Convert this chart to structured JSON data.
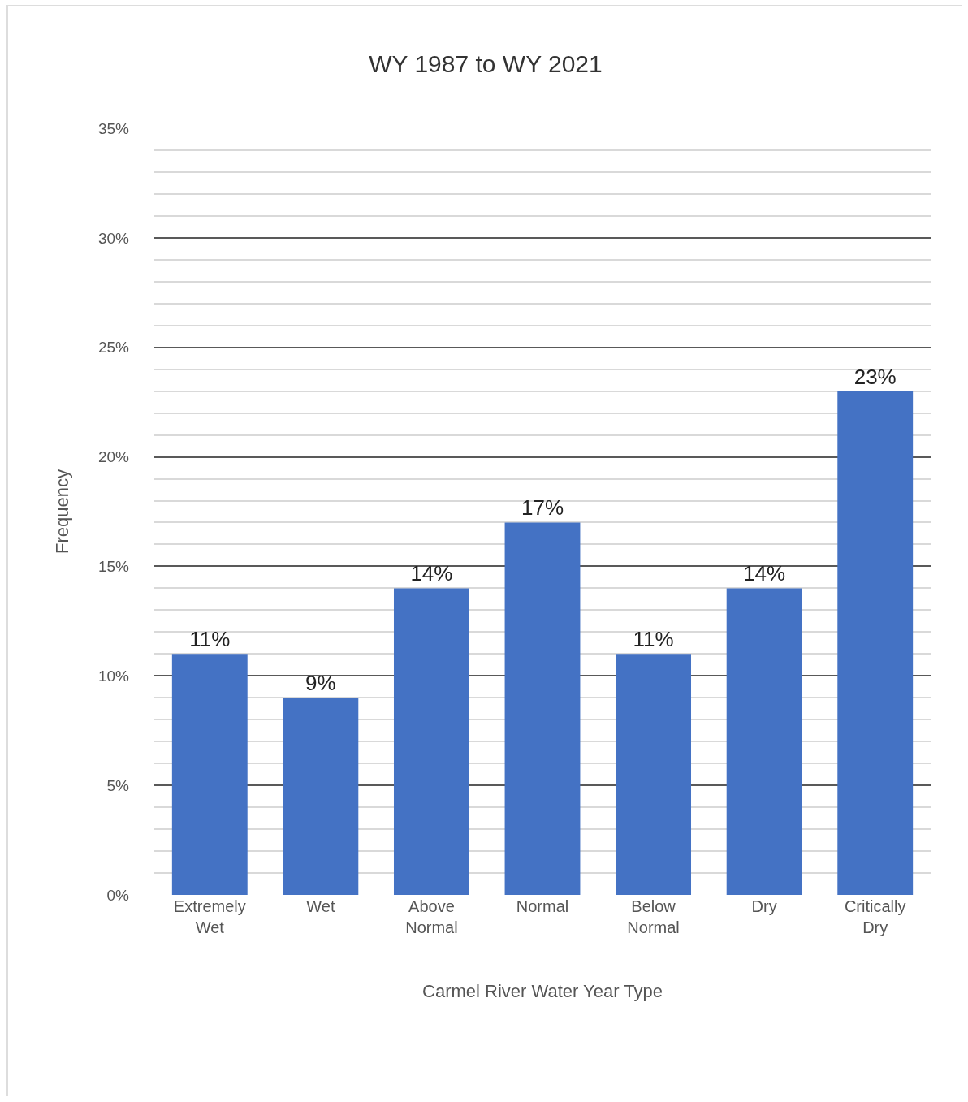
{
  "chart_data": {
    "type": "bar",
    "title": "WY 1987 to WY 2021",
    "xlabel": "Carmel River Water Year Type",
    "ylabel": "Frequency",
    "categories": [
      "Extremely Wet",
      "Wet",
      "Above Normal",
      "Normal",
      "Below Normal",
      "Dry",
      "Critically Dry"
    ],
    "values": [
      11,
      9,
      14,
      17,
      11,
      14,
      23
    ],
    "value_labels": [
      "11%",
      "9%",
      "14%",
      "17%",
      "11%",
      "14%",
      "23%"
    ],
    "color": "#4472c4",
    "ylim": [
      0,
      35
    ],
    "yticks": [
      {
        "value": 0,
        "label": "0%"
      },
      {
        "value": 5,
        "label": "5%"
      },
      {
        "value": 10,
        "label": "10%"
      },
      {
        "value": 15,
        "label": "15%"
      },
      {
        "value": 20,
        "label": "20%"
      },
      {
        "value": 25,
        "label": "25%"
      },
      {
        "value": 30,
        "label": "30%"
      },
      {
        "value": 35,
        "label": "35%"
      }
    ],
    "grid": true
  }
}
